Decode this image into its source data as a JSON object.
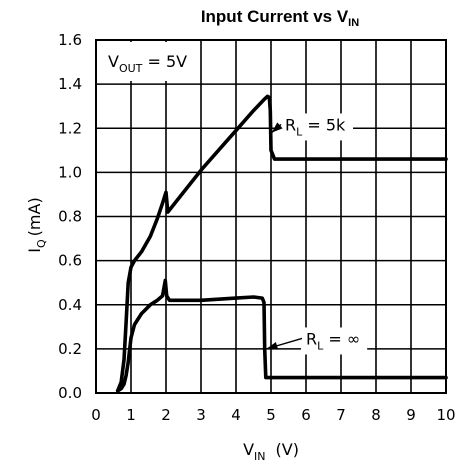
{
  "chart_data": {
    "type": "line",
    "title": {
      "main": "Input Current vs V",
      "sub": "IN"
    },
    "xlabel": {
      "main": "V",
      "sub": "IN",
      "unit": "(V)"
    },
    "ylabel": {
      "main": "I",
      "sub": "Q",
      "unit": "(mA)"
    },
    "xlim": [
      0,
      10
    ],
    "ylim": [
      0,
      1.6
    ],
    "x_ticks": [
      "0",
      "1",
      "2",
      "3",
      "4",
      "5",
      "6",
      "7",
      "8",
      "9",
      "10"
    ],
    "y_ticks": [
      "0.0",
      "0.2",
      "0.4",
      "0.6",
      "0.8",
      "1.0",
      "1.2",
      "1.4",
      "1.6"
    ],
    "grid": true,
    "condition": {
      "main": "V",
      "sub": "OUT",
      "rest": " = 5V"
    },
    "series": [
      {
        "name": "RL = 5k",
        "label": {
          "main": "R",
          "sub": "L",
          "rest": " = 5k"
        },
        "x": [
          0.62,
          0.72,
          0.8,
          0.86,
          0.92,
          1.0,
          1.1,
          1.3,
          1.55,
          1.75,
          1.9,
          2.0,
          2.05,
          2.5,
          3.0,
          3.5,
          4.0,
          4.5,
          4.8,
          4.9,
          4.95,
          4.98,
          5.0,
          5.1,
          6.0,
          7.0,
          8.0,
          9.0,
          10.0
        ],
        "y": [
          0.01,
          0.05,
          0.15,
          0.32,
          0.5,
          0.57,
          0.6,
          0.64,
          0.71,
          0.79,
          0.86,
          0.91,
          0.82,
          0.91,
          1.01,
          1.1,
          1.19,
          1.28,
          1.33,
          1.345,
          1.34,
          1.28,
          1.1,
          1.06,
          1.06,
          1.06,
          1.06,
          1.06,
          1.06
        ]
      },
      {
        "name": "RL = ∞",
        "label": {
          "main": "R",
          "sub": "L",
          "rest": " = ∞"
        },
        "x": [
          0.62,
          0.72,
          0.8,
          0.86,
          0.92,
          1.0,
          1.1,
          1.3,
          1.55,
          1.75,
          1.9,
          1.98,
          2.02,
          2.1,
          2.5,
          3.0,
          3.5,
          4.0,
          4.5,
          4.75,
          4.8,
          4.82,
          4.85,
          6.0,
          7.0,
          8.0,
          9.0,
          10.0
        ],
        "y": [
          0.01,
          0.02,
          0.04,
          0.08,
          0.14,
          0.25,
          0.31,
          0.36,
          0.4,
          0.42,
          0.44,
          0.51,
          0.44,
          0.42,
          0.42,
          0.42,
          0.425,
          0.43,
          0.435,
          0.43,
          0.41,
          0.2,
          0.07,
          0.07,
          0.07,
          0.07,
          0.07,
          0.07
        ]
      }
    ],
    "annotations": [
      {
        "series": 0,
        "at": [
          5.02,
          1.18
        ],
        "label_at": [
          5.4,
          1.19
        ]
      },
      {
        "series": 1,
        "at": [
          4.87,
          0.2
        ],
        "label_at": [
          6.0,
          0.22
        ]
      }
    ]
  }
}
